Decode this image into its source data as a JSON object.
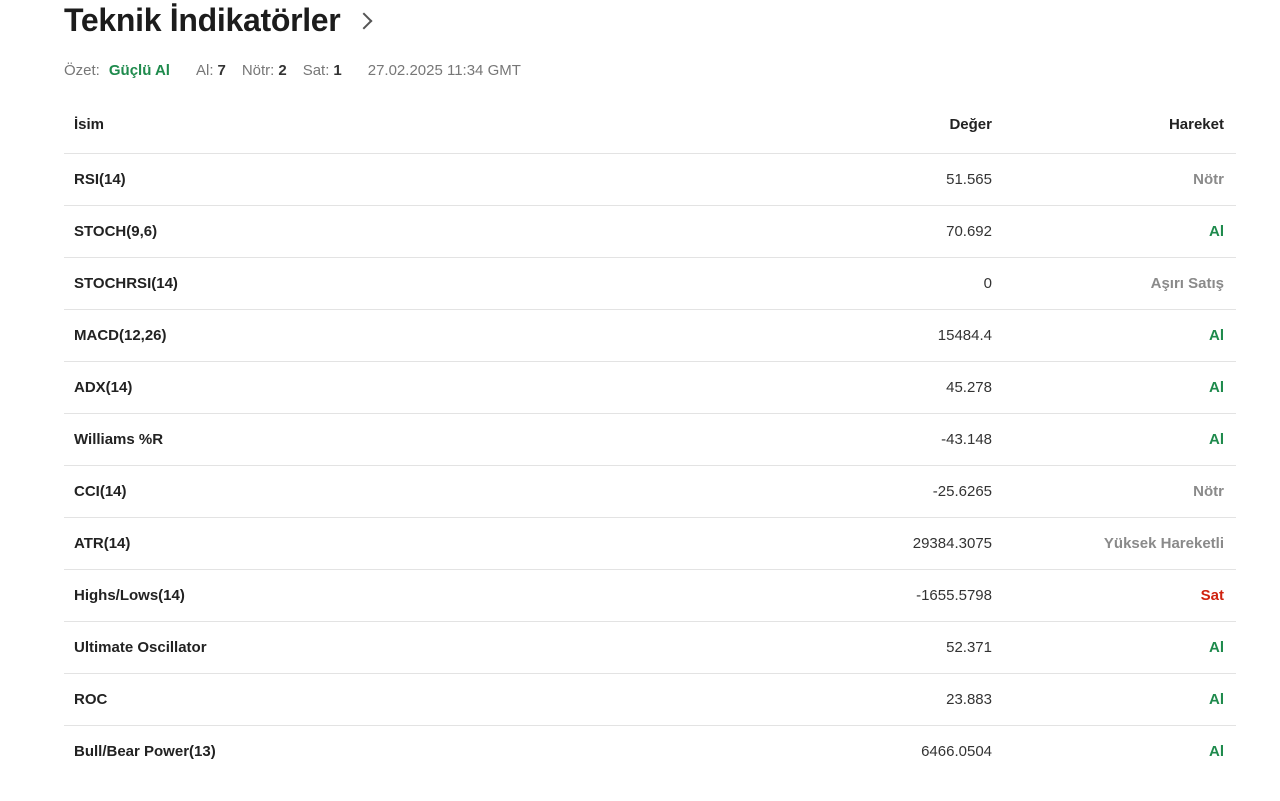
{
  "header": {
    "title": "Teknik İndikatörler",
    "chevron_icon": "chevron-right-icon"
  },
  "summary": {
    "label": "Özet:",
    "verdict": "Güçlü Al",
    "buy_label": "Al:",
    "buy_count": "7",
    "neutral_label": "Nötr:",
    "neutral_count": "2",
    "sell_label": "Sat:",
    "sell_count": "1",
    "timestamp": "27.02.2025 11:34 GMT"
  },
  "colors": {
    "buy": "#1e8a4c",
    "neutral": "#8a8a8a",
    "sell": "#d0220f"
  },
  "table": {
    "columns": [
      "İsim",
      "Değer",
      "Hareket"
    ],
    "rows": [
      {
        "name": "RSI(14)",
        "value": "51.565",
        "action": "Nötr",
        "type": "neutral"
      },
      {
        "name": "STOCH(9,6)",
        "value": "70.692",
        "action": "Al",
        "type": "buy"
      },
      {
        "name": "STOCHRSI(14)",
        "value": "0",
        "action": "Aşırı Satış",
        "type": "neutral"
      },
      {
        "name": "MACD(12,26)",
        "value": "15484.4",
        "action": "Al",
        "type": "buy"
      },
      {
        "name": "ADX(14)",
        "value": "45.278",
        "action": "Al",
        "type": "buy"
      },
      {
        "name": "Williams %R",
        "value": "-43.148",
        "action": "Al",
        "type": "buy"
      },
      {
        "name": "CCI(14)",
        "value": "-25.6265",
        "action": "Nötr",
        "type": "neutral"
      },
      {
        "name": "ATR(14)",
        "value": "29384.3075",
        "action": "Yüksek Hareketli",
        "type": "neutral"
      },
      {
        "name": "Highs/Lows(14)",
        "value": "-1655.5798",
        "action": "Sat",
        "type": "sell"
      },
      {
        "name": "Ultimate Oscillator",
        "value": "52.371",
        "action": "Al",
        "type": "buy"
      },
      {
        "name": "ROC",
        "value": "23.883",
        "action": "Al",
        "type": "buy"
      },
      {
        "name": "Bull/Bear Power(13)",
        "value": "6466.0504",
        "action": "Al",
        "type": "buy"
      }
    ]
  }
}
